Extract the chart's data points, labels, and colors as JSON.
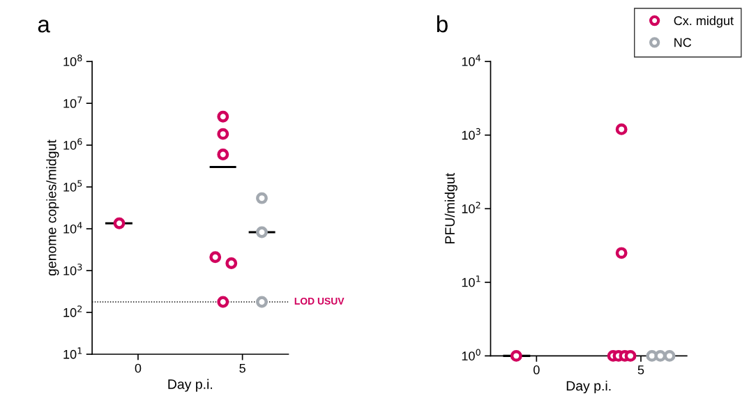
{
  "chart_data": [
    {
      "type": "scatter",
      "title": "a",
      "xlabel": "Day p.i.",
      "ylabel": "genome copies/midgut",
      "log": "y",
      "marker": "circle",
      "xlim": [
        -2.2,
        7.2
      ],
      "xticks": [
        0,
        5
      ],
      "ylim": [
        10,
        100000000
      ],
      "yticks": [
        {
          "value": 10,
          "label": "10$^{1}$"
        },
        {
          "value": 100,
          "label": "10$^{2}$"
        },
        {
          "value": 1000,
          "label": "10$^{3}$"
        },
        {
          "value": 10000,
          "label": "10$^{4}$"
        },
        {
          "value": 100000,
          "label": "10$^{5}$"
        },
        {
          "value": 1000000,
          "label": "10$^{6}$"
        },
        {
          "value": 10000000,
          "label": "10$^{7}$"
        },
        {
          "value": 100000000,
          "label": "10$^{8}$"
        }
      ],
      "series": [
        {
          "color": "#d1005d",
          "x": [
            -0.9,
            4.07,
            4.07,
            4.07,
            3.7,
            4.47,
            4.07
          ],
          "values": [
            13500,
            4800000,
            1850000,
            600000,
            2100,
            1500,
            178
          ]
        },
        {
          "color": "#a3a9b0",
          "x": [
            5.93,
            5.93,
            5.93
          ],
          "values": [
            54000,
            8300,
            178
          ]
        },
        {
          "type": "line",
          "marker": "none",
          "color": "#000000",
          "x": [
            -1.57,
            -0.27
          ],
          "values": [
            13500,
            13500
          ]
        },
        {
          "type": "line",
          "marker": "none",
          "color": "#000000",
          "x": [
            3.43,
            4.7
          ],
          "values": [
            300000,
            300000
          ]
        },
        {
          "type": "line",
          "marker": "none",
          "color": "#000000",
          "x": [
            5.3,
            6.57
          ],
          "values": [
            8300,
            8300
          ]
        }
      ],
      "ref_lines": [
        {
          "axis": "y",
          "value": 178,
          "label": "LOD USUV",
          "color": "#000000",
          "line_style": "dotted"
        }
      ]
    },
    {
      "type": "scatter",
      "title": "b",
      "xlabel": "Day p.i.",
      "ylabel": "PFU/midgut",
      "log": "y",
      "marker": "circle",
      "legend": "top right",
      "xlim": [
        -2.2,
        7.2
      ],
      "xticks": [
        0,
        5
      ],
      "ylim": [
        1,
        10000
      ],
      "yticks": [
        {
          "value": 1,
          "label": "10$^{0}$"
        },
        {
          "value": 10,
          "label": "10$^{1}$"
        },
        {
          "value": 100,
          "label": "10$^{2}$"
        },
        {
          "value": 1000,
          "label": "10$^{3}$"
        },
        {
          "value": 10000,
          "label": "10$^{4}$"
        }
      ],
      "series": [
        {
          "type": "line",
          "marker": "none",
          "color": "#000000",
          "x": [
            -1.6,
            -0.3
          ],
          "values": [
            1,
            1
          ]
        },
        {
          "name": "Cx. midgut",
          "color": "#d1005d",
          "x": [
            -0.97,
            4.07,
            4.07,
            3.67,
            3.93,
            4.23,
            4.5
          ],
          "values": [
            1,
            1200,
            25,
            1,
            1,
            1,
            1
          ]
        },
        {
          "name": "NC",
          "color": "#a3a9b0",
          "x": [
            5.53,
            5.93,
            6.37
          ],
          "values": [
            1,
            1,
            1
          ]
        }
      ]
    }
  ]
}
